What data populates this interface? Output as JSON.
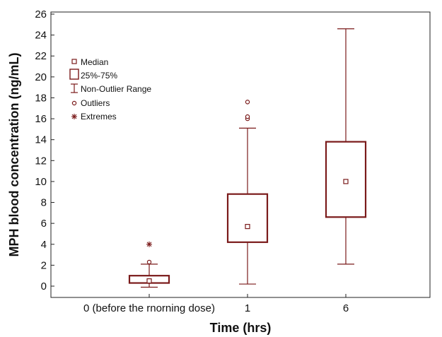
{
  "chart_data": {
    "type": "box",
    "title": "",
    "xlabel": "Time (hrs)",
    "ylabel": "MPH blood concentration (ng/mL)",
    "ylim": [
      -1,
      26
    ],
    "yticks": [
      0,
      2,
      4,
      6,
      8,
      10,
      12,
      14,
      16,
      18,
      20,
      22,
      24,
      26
    ],
    "grid": false,
    "legend_position": "top-left",
    "color": "#7a1a1a",
    "categories": [
      "0 (before the rnorning dose)",
      "1",
      "6"
    ],
    "boxes": [
      {
        "category": "0 (before the rnorning dose)",
        "median": 0.5,
        "q1": 0.3,
        "q3": 1.0,
        "whisker_low": -0.1,
        "whisker_high": 2.1,
        "outliers": [
          2.3
        ],
        "extremes": [
          4.0
        ]
      },
      {
        "category": "1",
        "median": 5.7,
        "q1": 4.2,
        "q3": 8.8,
        "whisker_low": 0.2,
        "whisker_high": 15.1,
        "outliers": [
          16.0,
          16.2,
          17.6
        ],
        "extremes": []
      },
      {
        "category": "6",
        "median": 10.0,
        "q1": 6.6,
        "q3": 13.8,
        "whisker_low": 2.1,
        "whisker_high": 24.6,
        "outliers": [],
        "extremes": []
      }
    ],
    "legend": {
      "median": "Median",
      "box": "25%-75%",
      "range": "Non-Outlier Range",
      "outliers": "Outliers",
      "extremes": "Extremes"
    }
  }
}
